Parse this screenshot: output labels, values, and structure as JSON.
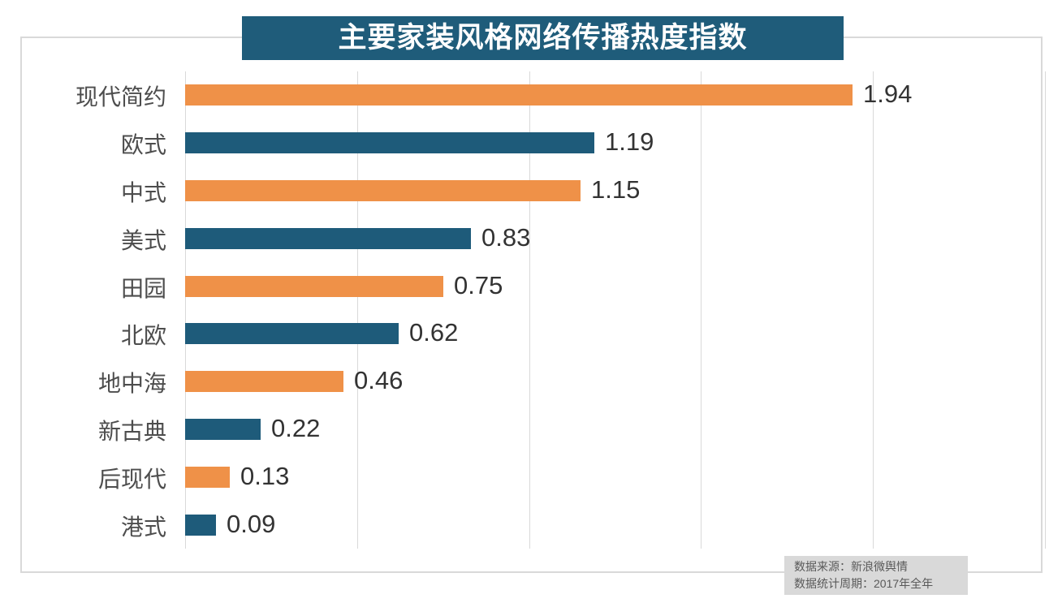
{
  "title": "主要家装风格网络传播热度指数",
  "footer": {
    "source_line": "数据来源：新浪微舆情",
    "period_line": "数据统计周期：2017年全年"
  },
  "colors": {
    "banner_bg": "#1f5c7a",
    "bar_orange": "#ef9148",
    "bar_blue": "#1e5b7a",
    "grid": "#d9d9d9",
    "category_text": "#4d4d4d",
    "value_text": "#333333",
    "footer_bg": "#d9d9d9",
    "footer_text": "#595959"
  },
  "chart_data": {
    "type": "bar",
    "orientation": "horizontal",
    "title": "主要家装风格网络传播热度指数",
    "categories": [
      "现代简约",
      "欧式",
      "中式",
      "美式",
      "田园",
      "北欧",
      "地中海",
      "新古典",
      "后现代",
      "港式"
    ],
    "values": [
      1.94,
      1.19,
      1.15,
      0.83,
      0.75,
      0.62,
      0.46,
      0.22,
      0.13,
      0.09
    ],
    "bar_colors": [
      "#ef9148",
      "#1e5b7a",
      "#ef9148",
      "#1e5b7a",
      "#ef9148",
      "#1e5b7a",
      "#ef9148",
      "#1e5b7a",
      "#ef9148",
      "#1e5b7a"
    ],
    "value_labels": [
      "1.94",
      "1.19",
      "1.15",
      "0.83",
      "0.75",
      "0.62",
      "0.46",
      "0.22",
      "0.13",
      "0.09"
    ],
    "xlabel": "",
    "ylabel": "",
    "xlim": [
      0,
      2.5
    ],
    "gridline_values": [
      0,
      0.5,
      1.0,
      1.5,
      2.0,
      2.5
    ],
    "grid": true,
    "legend": false,
    "data_labels": true
  }
}
